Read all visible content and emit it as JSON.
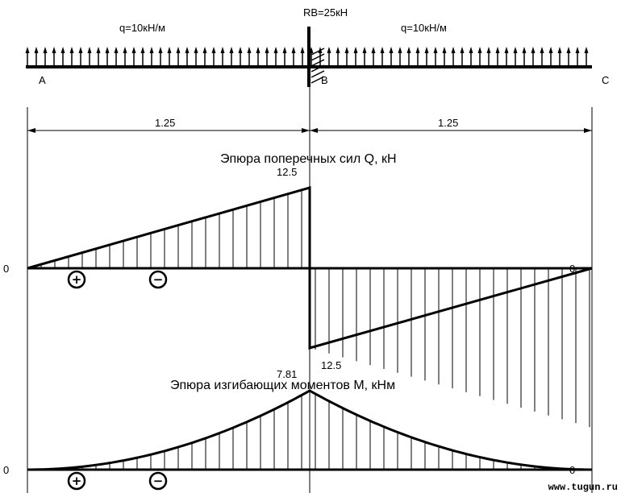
{
  "beam": {
    "load_left": "q=10кН/м",
    "load_right": "q=10кН/м",
    "reaction": "RB=25кН",
    "point_a": "A",
    "point_b": "B",
    "point_c": "C",
    "span_left": "1.25",
    "span_right": "1.25"
  },
  "shear": {
    "title": "Эпюра поперечных сил Q, кН",
    "zero_left": "0",
    "zero_right": "0",
    "peak_top": "12.5",
    "peak_bottom": "12.5",
    "sign_positive": "+",
    "sign_negative": "−"
  },
  "moment": {
    "title": "Эпюра изгибающих моментов М, кНм",
    "zero_left": "0",
    "zero_right": "0",
    "peak": "7.81",
    "sign_positive": "+",
    "sign_negative": "−"
  },
  "watermark": "www.tugun.ru"
}
